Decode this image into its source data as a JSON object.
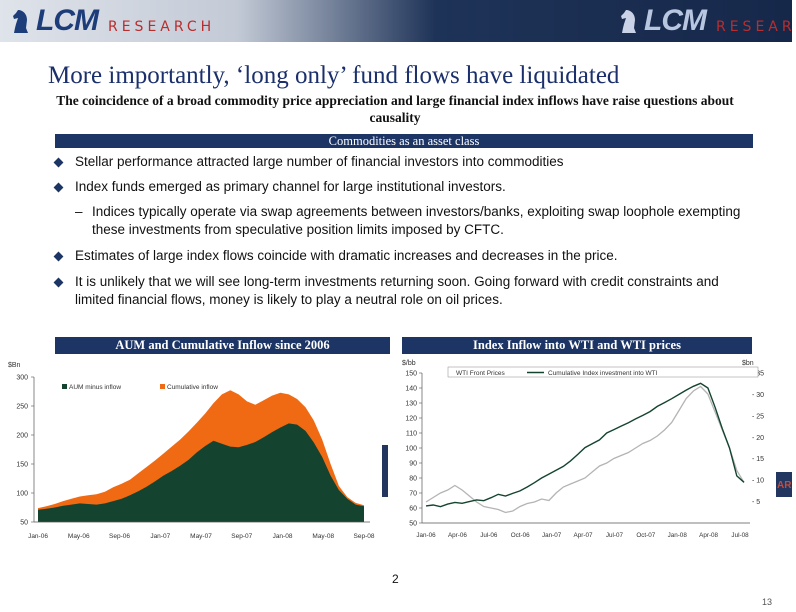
{
  "banner": {
    "logo_left": {
      "lcm": "LCM",
      "research": "RESEARCH"
    },
    "logo_right": {
      "lcm": "LCM",
      "research": "RESEAR"
    },
    "side_fragment": "AR"
  },
  "slide": {
    "title": "More importantly, ‘long only’ fund flows have liquidated",
    "subtitle": "The coincidence of a broad commodity price appreciation and large financial index inflows have raise questions about causality",
    "section_header": "Commodities as an asset class",
    "bullets": [
      {
        "level": 1,
        "text": "Stellar performance attracted large number of financial investors into commodities"
      },
      {
        "level": 1,
        "text": "Index funds emerged as primary channel for large institutional investors."
      },
      {
        "level": 2,
        "text": "Indices typically operate via swap agreements between investors/banks, exploiting swap loophole exempting these investments from speculative position limits imposed by CFTC."
      },
      {
        "level": 1,
        "text": "Estimates of large index flows coincide with dramatic increases and decreases in the price."
      },
      {
        "level": 1,
        "text": "It is unlikely that we will see long-term investments  returning soon. Going forward with credit constraints and limited financial flows, money is likely to play a neutral role on oil prices."
      }
    ],
    "dash": "–",
    "page_number": "2",
    "slide_number": "13"
  },
  "colors": {
    "navy": "#1c3565",
    "aum": "#14442f",
    "inflow": "#f06a14",
    "wti": "#b4b4b4",
    "index": "#14442f"
  },
  "chart_data": [
    {
      "type": "area",
      "title": "AUM and Cumulative Inflow since 2006",
      "ylabel": "$Bn",
      "ylim": [
        50,
        300
      ],
      "yticks": [
        50,
        100,
        150,
        200,
        250,
        300
      ],
      "xticks": [
        "Jan-06",
        "May-06",
        "Sep-06",
        "Jan-07",
        "May-07",
        "Sep-07",
        "Jan-08",
        "May-08",
        "Sep-08"
      ],
      "series": [
        {
          "name": "AUM minus inflow",
          "values": [
            71,
            73,
            75,
            78,
            80,
            82,
            81,
            80,
            82,
            86,
            90,
            96,
            103,
            111,
            120,
            130,
            138,
            147,
            157,
            170,
            181,
            190,
            185,
            180,
            179,
            183,
            188,
            196,
            205,
            213,
            220,
            218,
            207,
            187,
            162,
            130,
            105,
            90,
            80,
            77
          ]
        },
        {
          "name": "Cumulative inflow",
          "values": [
            74,
            77,
            81,
            86,
            90,
            94,
            96,
            98,
            102,
            110,
            116,
            123,
            134,
            145,
            156,
            168,
            180,
            192,
            206,
            221,
            237,
            255,
            270,
            277,
            270,
            258,
            252,
            260,
            268,
            273,
            270,
            262,
            248,
            225,
            192,
            150,
            112,
            93,
            83,
            79
          ]
        }
      ]
    },
    {
      "type": "line",
      "title": "Index Inflow into WTI and WTI prices",
      "ylabel": "$/bb",
      "y2label": "$bn",
      "ylim": [
        50,
        150
      ],
      "yticks": [
        50,
        60,
        70,
        80,
        90,
        100,
        110,
        120,
        130,
        140,
        150
      ],
      "y2lim": [
        0,
        35
      ],
      "y2ticks": [
        5,
        10,
        15,
        20,
        25,
        30,
        35
      ],
      "xticks": [
        "Jan-06",
        "Apr-06",
        "Jul-06",
        "Oct-06",
        "Jan-07",
        "Apr-07",
        "Jul-07",
        "Oct-07",
        "Jan-08",
        "Apr-08",
        "Jul-08"
      ],
      "series": [
        {
          "name": "WTI Front Prices",
          "axis": "left",
          "values": [
            64,
            67,
            70,
            72,
            75,
            72,
            68,
            64,
            61,
            60,
            59,
            57,
            58,
            61,
            63,
            64,
            66,
            65,
            70,
            74,
            76,
            78,
            80,
            84,
            88,
            90,
            93,
            95,
            97,
            100,
            103,
            105,
            108,
            112,
            117,
            125,
            133,
            138,
            141,
            136,
            124,
            112,
            100,
            85,
            77
          ]
        },
        {
          "name": "Cumulative Index investment into WTI",
          "axis": "right",
          "values": [
            4.0,
            4.2,
            3.8,
            4.4,
            4.8,
            4.6,
            5.0,
            5.4,
            5.2,
            5.9,
            6.7,
            6.3,
            6.9,
            7.5,
            8.4,
            9.4,
            10.5,
            11.4,
            12.3,
            13.2,
            14.5,
            16.0,
            17.6,
            18.5,
            19.4,
            21.0,
            21.8,
            22.6,
            23.4,
            24.3,
            25.1,
            26.0,
            27.2,
            28.1,
            29.0,
            30.0,
            31.0,
            31.9,
            32.6,
            31.5,
            27.0,
            22.0,
            17.5,
            11.0,
            9.5
          ]
        }
      ]
    }
  ]
}
